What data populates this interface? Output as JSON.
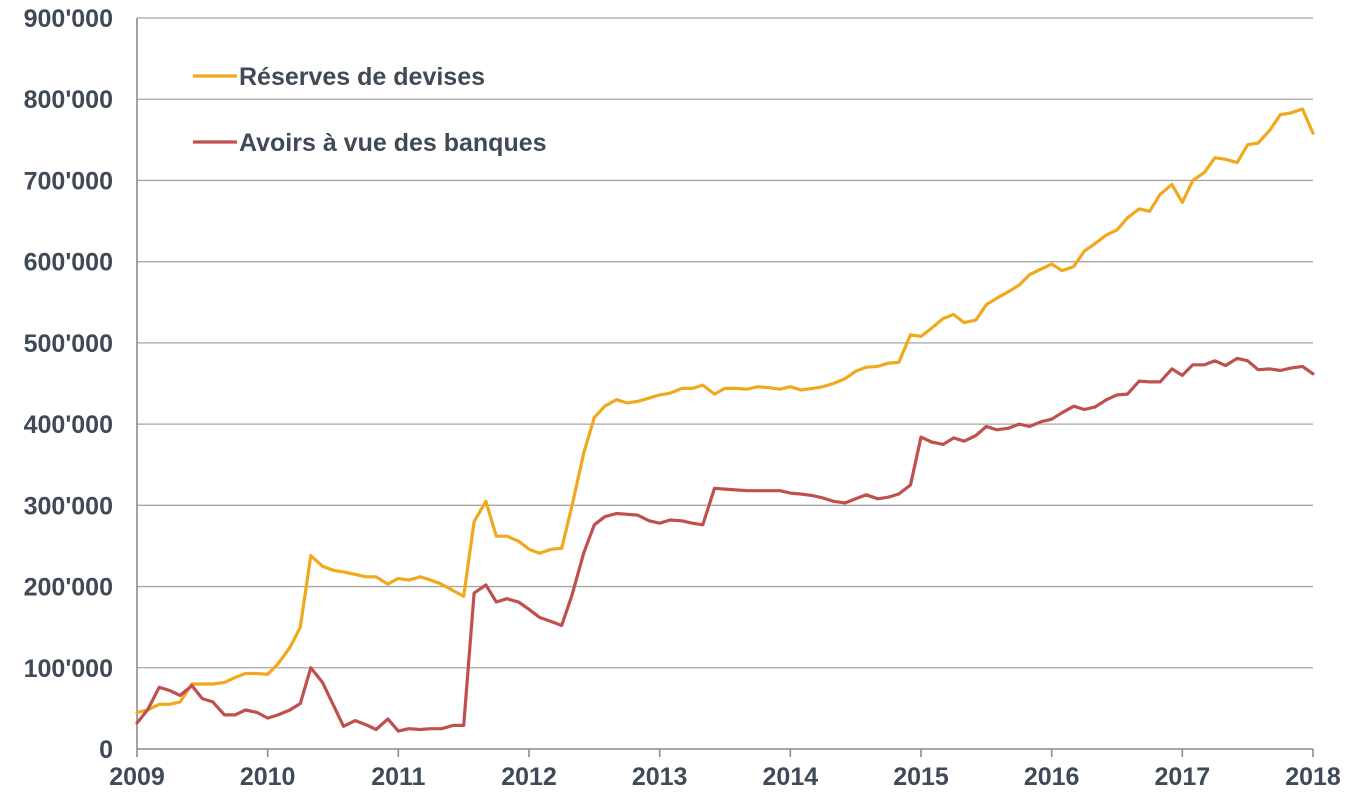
{
  "chart_data": {
    "type": "line",
    "title": "",
    "xlabel": "",
    "ylabel": "",
    "ylim": [
      0,
      900000
    ],
    "xlim": [
      2009,
      2018
    ],
    "grid": "horizontal",
    "legend_position": "top-left",
    "y_tick_labels": [
      "0",
      "100'000",
      "200'000",
      "300'000",
      "400'000",
      "500'000",
      "600'000",
      "700'000",
      "800'000",
      "900'000"
    ],
    "x_tick_labels": [
      "2009",
      "2010",
      "2011",
      "2012",
      "2013",
      "2014",
      "2015",
      "2016",
      "2017",
      "2018"
    ],
    "series": [
      {
        "name": "Réserves de devises",
        "color": "#f0a81c",
        "points": [
          [
            2009.0,
            45000
          ],
          [
            2009.08,
            48000
          ],
          [
            2009.17,
            55000
          ],
          [
            2009.25,
            55000
          ],
          [
            2009.33,
            58000
          ],
          [
            2009.42,
            80000
          ],
          [
            2009.5,
            80000
          ],
          [
            2009.58,
            80000
          ],
          [
            2009.67,
            82000
          ],
          [
            2009.75,
            88000
          ],
          [
            2009.83,
            93000
          ],
          [
            2009.92,
            93000
          ],
          [
            2010.0,
            92000
          ],
          [
            2010.08,
            105000
          ],
          [
            2010.17,
            125000
          ],
          [
            2010.25,
            150000
          ],
          [
            2010.33,
            238000
          ],
          [
            2010.42,
            225000
          ],
          [
            2010.5,
            220000
          ],
          [
            2010.58,
            218000
          ],
          [
            2010.67,
            215000
          ],
          [
            2010.75,
            212000
          ],
          [
            2010.83,
            212000
          ],
          [
            2010.92,
            203000
          ],
          [
            2011.0,
            210000
          ],
          [
            2011.08,
            208000
          ],
          [
            2011.17,
            212000
          ],
          [
            2011.25,
            208000
          ],
          [
            2011.33,
            203000
          ],
          [
            2011.42,
            195000
          ],
          [
            2011.5,
            188000
          ],
          [
            2011.58,
            280000
          ],
          [
            2011.67,
            305000
          ],
          [
            2011.75,
            262000
          ],
          [
            2011.83,
            262000
          ],
          [
            2011.92,
            256000
          ],
          [
            2012.0,
            246000
          ],
          [
            2012.08,
            241000
          ],
          [
            2012.17,
            246000
          ],
          [
            2012.25,
            247000
          ],
          [
            2012.33,
            300000
          ],
          [
            2012.42,
            365000
          ],
          [
            2012.5,
            408000
          ],
          [
            2012.58,
            422000
          ],
          [
            2012.67,
            430000
          ],
          [
            2012.75,
            426000
          ],
          [
            2012.83,
            428000
          ],
          [
            2012.92,
            432000
          ],
          [
            2013.0,
            436000
          ],
          [
            2013.08,
            438000
          ],
          [
            2013.17,
            444000
          ],
          [
            2013.25,
            444000
          ],
          [
            2013.33,
            448000
          ],
          [
            2013.42,
            437000
          ],
          [
            2013.5,
            444000
          ],
          [
            2013.58,
            444000
          ],
          [
            2013.67,
            443000
          ],
          [
            2013.75,
            446000
          ],
          [
            2013.83,
            445000
          ],
          [
            2013.92,
            443000
          ],
          [
            2014.0,
            446000
          ],
          [
            2014.08,
            442000
          ],
          [
            2014.17,
            444000
          ],
          [
            2014.25,
            446000
          ],
          [
            2014.33,
            450000
          ],
          [
            2014.42,
            456000
          ],
          [
            2014.5,
            465000
          ],
          [
            2014.58,
            470000
          ],
          [
            2014.67,
            471000
          ],
          [
            2014.75,
            475000
          ],
          [
            2014.83,
            476000
          ],
          [
            2014.92,
            510000
          ],
          [
            2015.0,
            508000
          ],
          [
            2015.08,
            518000
          ],
          [
            2015.17,
            530000
          ],
          [
            2015.25,
            535000
          ],
          [
            2015.33,
            525000
          ],
          [
            2015.42,
            528000
          ],
          [
            2015.5,
            547000
          ],
          [
            2015.58,
            555000
          ],
          [
            2015.67,
            563000
          ],
          [
            2015.75,
            571000
          ],
          [
            2015.83,
            584000
          ],
          [
            2015.92,
            591000
          ],
          [
            2016.0,
            597000
          ],
          [
            2016.08,
            589000
          ],
          [
            2016.17,
            594000
          ],
          [
            2016.25,
            613000
          ],
          [
            2016.33,
            622000
          ],
          [
            2016.42,
            633000
          ],
          [
            2016.5,
            639000
          ],
          [
            2016.58,
            654000
          ],
          [
            2016.67,
            665000
          ],
          [
            2016.75,
            662000
          ],
          [
            2016.83,
            683000
          ],
          [
            2016.92,
            695000
          ],
          [
            2017.0,
            673000
          ],
          [
            2017.08,
            700000
          ],
          [
            2017.17,
            710000
          ],
          [
            2017.25,
            728000
          ],
          [
            2017.33,
            726000
          ],
          [
            2017.42,
            722000
          ],
          [
            2017.5,
            744000
          ],
          [
            2017.58,
            746000
          ],
          [
            2017.67,
            762000
          ],
          [
            2017.75,
            781000
          ],
          [
            2017.83,
            783000
          ],
          [
            2017.92,
            788000
          ],
          [
            2018.0,
            758000
          ]
        ]
      },
      {
        "name": "Avoirs à vue des banques",
        "color": "#c0504d",
        "points": [
          [
            2009.0,
            32000
          ],
          [
            2009.08,
            48000
          ],
          [
            2009.17,
            76000
          ],
          [
            2009.25,
            72000
          ],
          [
            2009.33,
            66000
          ],
          [
            2009.42,
            78000
          ],
          [
            2009.5,
            62000
          ],
          [
            2009.58,
            58000
          ],
          [
            2009.67,
            42000
          ],
          [
            2009.75,
            42000
          ],
          [
            2009.83,
            48000
          ],
          [
            2009.92,
            45000
          ],
          [
            2010.0,
            38000
          ],
          [
            2010.08,
            42000
          ],
          [
            2010.17,
            48000
          ],
          [
            2010.25,
            56000
          ],
          [
            2010.33,
            100000
          ],
          [
            2010.42,
            82000
          ],
          [
            2010.5,
            55000
          ],
          [
            2010.58,
            28000
          ],
          [
            2010.67,
            35000
          ],
          [
            2010.75,
            30000
          ],
          [
            2010.83,
            24000
          ],
          [
            2010.92,
            37000
          ],
          [
            2011.0,
            22000
          ],
          [
            2011.08,
            25000
          ],
          [
            2011.17,
            24000
          ],
          [
            2011.25,
            25000
          ],
          [
            2011.33,
            25000
          ],
          [
            2011.42,
            29000
          ],
          [
            2011.5,
            29000
          ],
          [
            2011.58,
            192000
          ],
          [
            2011.67,
            202000
          ],
          [
            2011.75,
            181000
          ],
          [
            2011.83,
            185000
          ],
          [
            2011.92,
            181000
          ],
          [
            2012.0,
            172000
          ],
          [
            2012.08,
            162000
          ],
          [
            2012.17,
            157000
          ],
          [
            2012.25,
            152000
          ],
          [
            2012.33,
            190000
          ],
          [
            2012.42,
            242000
          ],
          [
            2012.5,
            276000
          ],
          [
            2012.58,
            286000
          ],
          [
            2012.67,
            290000
          ],
          [
            2012.75,
            289000
          ],
          [
            2012.83,
            288000
          ],
          [
            2012.92,
            281000
          ],
          [
            2013.0,
            278000
          ],
          [
            2013.08,
            282000
          ],
          [
            2013.17,
            281000
          ],
          [
            2013.25,
            278000
          ],
          [
            2013.33,
            276000
          ],
          [
            2013.42,
            321000
          ],
          [
            2013.5,
            320000
          ],
          [
            2013.58,
            319000
          ],
          [
            2013.67,
            318000
          ],
          [
            2013.75,
            318000
          ],
          [
            2013.83,
            318000
          ],
          [
            2013.92,
            318000
          ],
          [
            2014.0,
            315000
          ],
          [
            2014.08,
            314000
          ],
          [
            2014.17,
            312000
          ],
          [
            2014.25,
            309000
          ],
          [
            2014.33,
            305000
          ],
          [
            2014.42,
            303000
          ],
          [
            2014.5,
            308000
          ],
          [
            2014.58,
            313000
          ],
          [
            2014.67,
            308000
          ],
          [
            2014.75,
            310000
          ],
          [
            2014.83,
            314000
          ],
          [
            2014.92,
            325000
          ],
          [
            2015.0,
            384000
          ],
          [
            2015.08,
            378000
          ],
          [
            2015.17,
            375000
          ],
          [
            2015.25,
            383000
          ],
          [
            2015.33,
            379000
          ],
          [
            2015.42,
            386000
          ],
          [
            2015.5,
            397000
          ],
          [
            2015.58,
            393000
          ],
          [
            2015.67,
            395000
          ],
          [
            2015.75,
            400000
          ],
          [
            2015.83,
            397000
          ],
          [
            2015.92,
            403000
          ],
          [
            2016.0,
            406000
          ],
          [
            2016.08,
            414000
          ],
          [
            2016.17,
            422000
          ],
          [
            2016.25,
            418000
          ],
          [
            2016.33,
            421000
          ],
          [
            2016.42,
            430000
          ],
          [
            2016.5,
            436000
          ],
          [
            2016.58,
            437000
          ],
          [
            2016.67,
            453000
          ],
          [
            2016.75,
            452000
          ],
          [
            2016.83,
            452000
          ],
          [
            2016.92,
            468000
          ],
          [
            2017.0,
            460000
          ],
          [
            2017.08,
            473000
          ],
          [
            2017.17,
            473000
          ],
          [
            2017.25,
            478000
          ],
          [
            2017.33,
            472000
          ],
          [
            2017.42,
            481000
          ],
          [
            2017.5,
            478000
          ],
          [
            2017.58,
            467000
          ],
          [
            2017.67,
            468000
          ],
          [
            2017.75,
            466000
          ],
          [
            2017.83,
            469000
          ],
          [
            2017.92,
            471000
          ],
          [
            2018.0,
            462000
          ]
        ]
      }
    ]
  }
}
